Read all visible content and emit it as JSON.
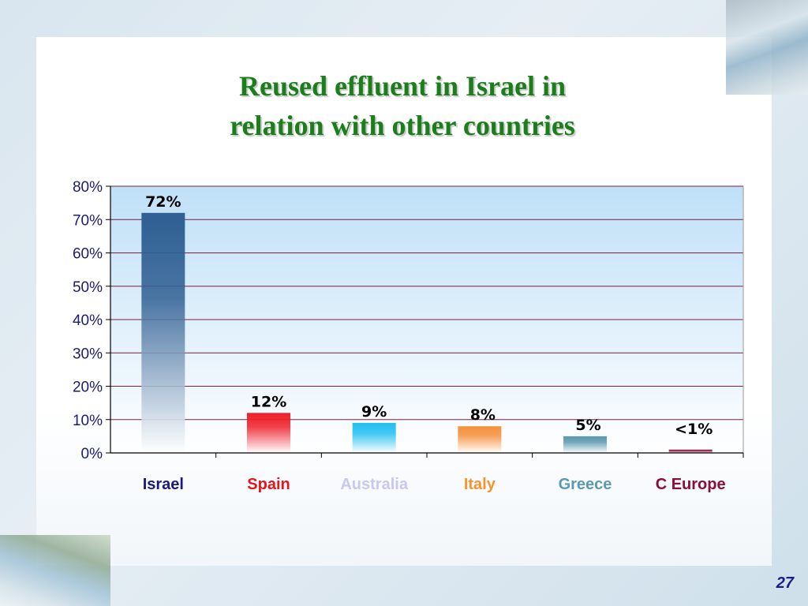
{
  "slide": {
    "title_line1": "Reused effluent in  Israel in",
    "title_line2": "relation with other countries",
    "page_number": "27"
  },
  "colors": {
    "title": "#1a7f1a",
    "plot_background_top": "#bfe0f7",
    "plot_background_bottom": "#ffffff",
    "gridline": "#7a1f3d",
    "axis_text": "#1c1c6e"
  },
  "chart_data": {
    "type": "bar",
    "title": "Reused effluent in  Israel in relation with other countries",
    "xlabel": "",
    "ylabel": "",
    "ylim": [
      0,
      80
    ],
    "y_ticks": [
      "0%",
      "10%",
      "20%",
      "30%",
      "40%",
      "50%",
      "60%",
      "70%",
      "80%"
    ],
    "y_tick_values": [
      0,
      10,
      20,
      30,
      40,
      50,
      60,
      70,
      80
    ],
    "grid": true,
    "legend": "none",
    "categories": [
      "Israel",
      "Spain",
      "Australia",
      "Italy",
      "Greece",
      "C Europe"
    ],
    "values": [
      72,
      12,
      9,
      8,
      5,
      1
    ],
    "data_labels": [
      "72%",
      "12%",
      "9%",
      "8%",
      "5%",
      "<1%"
    ],
    "category_colors": [
      "#1a1a7a",
      "#e8141c",
      "#c8c8f0",
      "#f7942e",
      "#5a9ab0",
      "#8a0e3a"
    ],
    "bar_top_colors": [
      "#2f5f93",
      "#ee1f2a",
      "#22bff0",
      "#f5903a",
      "#5a97ad",
      "#8a0e3a"
    ]
  }
}
